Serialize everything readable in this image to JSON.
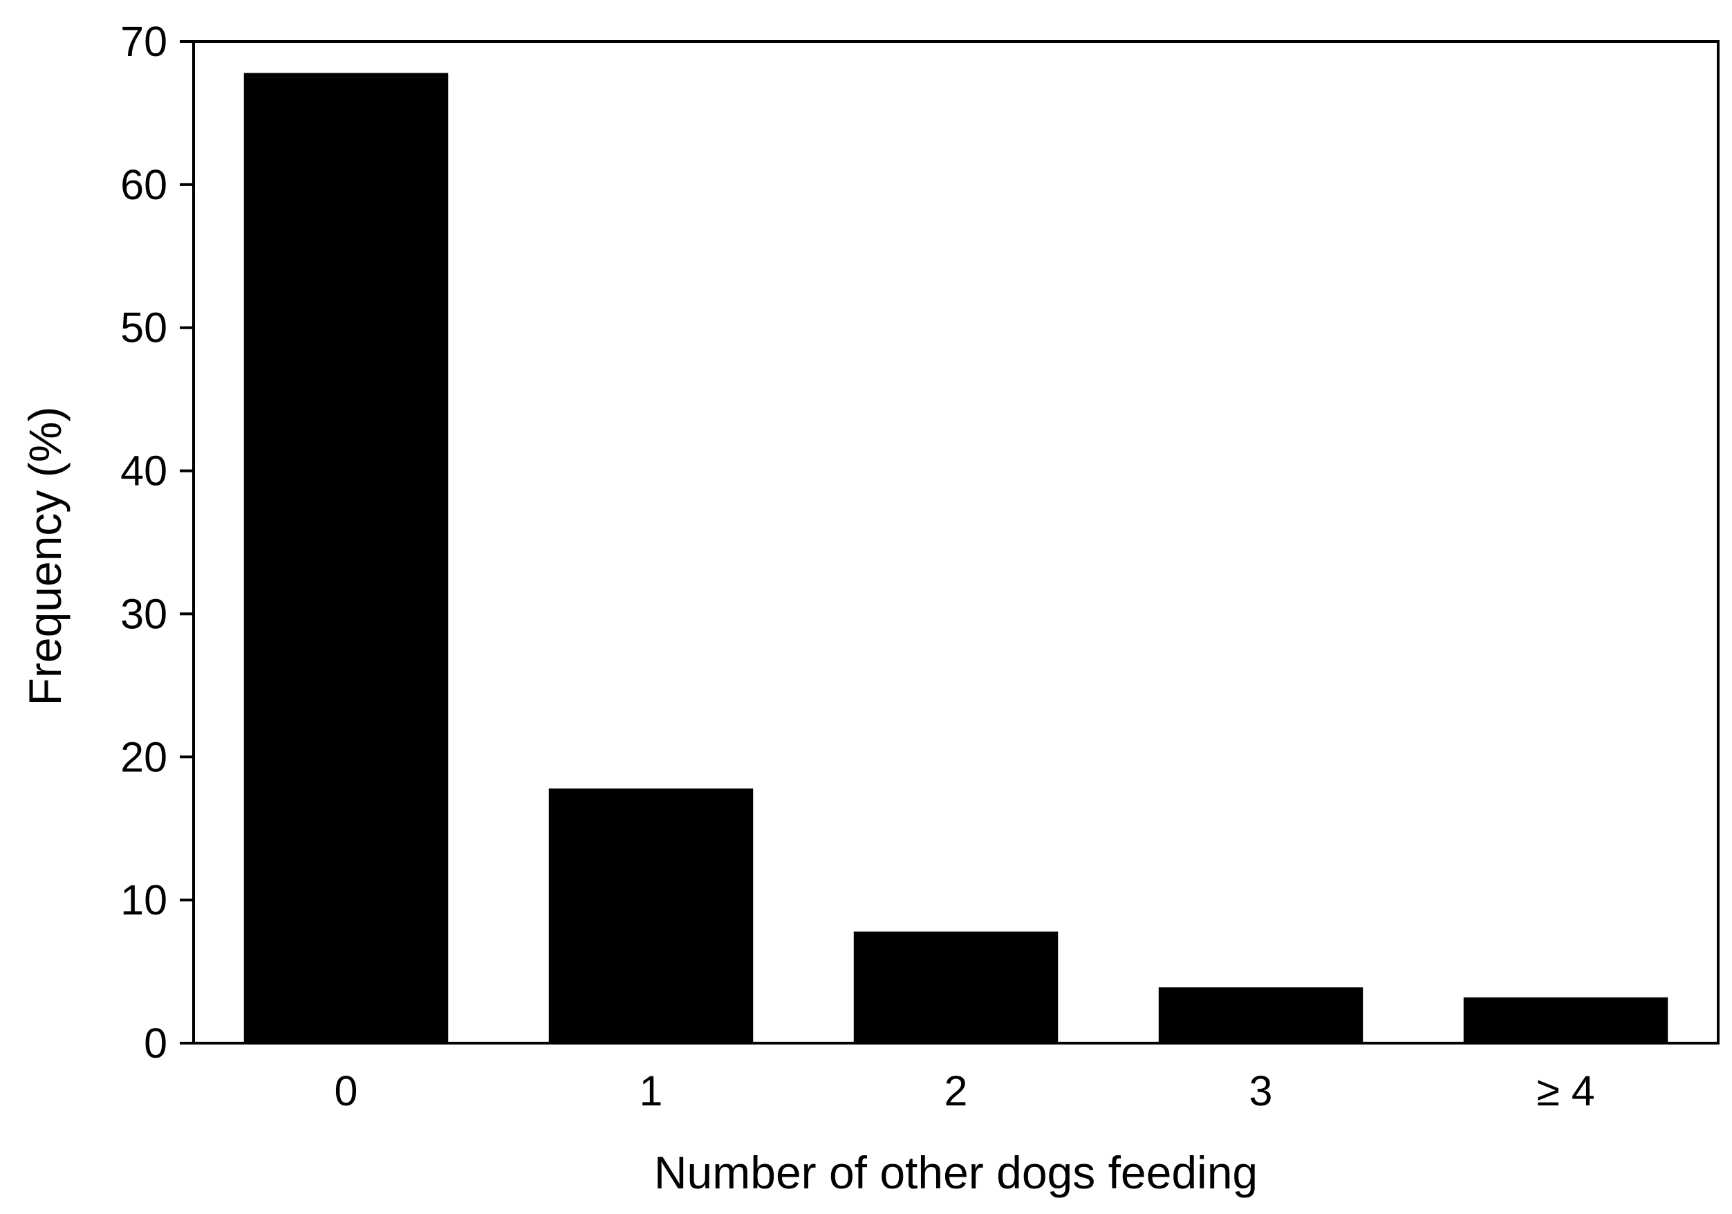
{
  "chart_data": {
    "type": "bar",
    "title": "",
    "xlabel": "Number of other dogs feeding",
    "ylabel": "Frequency (%)",
    "categories": [
      "0",
      "1",
      "2",
      "3",
      "≥ 4"
    ],
    "values": [
      67.8,
      17.8,
      7.8,
      3.9,
      3.2
    ],
    "ylim": [
      0,
      70
    ],
    "yticks": [
      0,
      10,
      20,
      30,
      40,
      50,
      60,
      70
    ],
    "ytick_labels": [
      "0",
      "10",
      "20",
      "30",
      "40",
      "50",
      "60",
      "70"
    ],
    "grid": false,
    "legend": "none",
    "bar_color": "#000000",
    "axis_color": "#000000"
  }
}
